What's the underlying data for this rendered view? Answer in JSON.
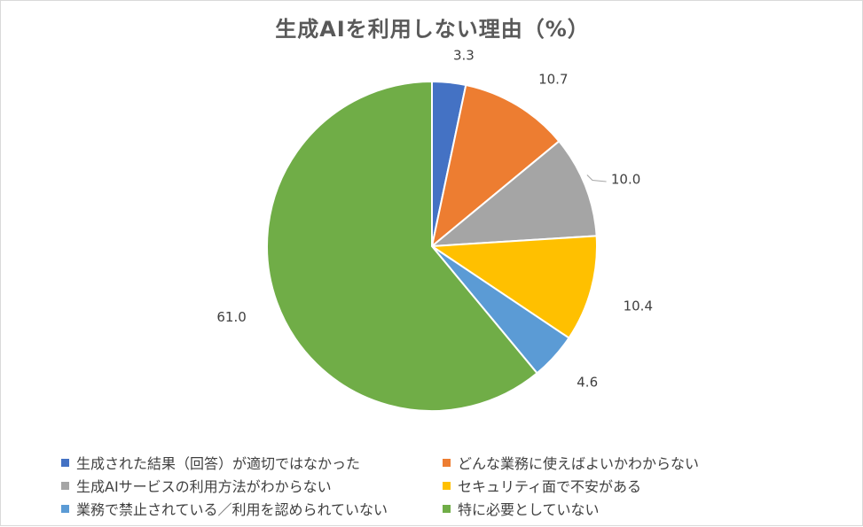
{
  "chart_data": {
    "type": "pie",
    "title": "生成AIを利用しない理由（%）",
    "categories": [
      "生成された結果（回答）が適切ではなかった",
      "どんな業務に使えばよいかわからない",
      "生成AIサービスの利用方法がわからない",
      "セキュリティ面で不安がある",
      "業務で禁止されている／利用を認められていない",
      "特に必要としていない"
    ],
    "values": [
      3.3,
      10.7,
      10.0,
      10.4,
      4.6,
      61.0
    ],
    "value_labels": [
      "3.3",
      "10.7",
      "10.0",
      "10.4",
      "4.6",
      "61.0"
    ],
    "colors": [
      "#4472c4",
      "#ed7d31",
      "#a5a5a5",
      "#ffc000",
      "#5b9bd5",
      "#70ad47"
    ],
    "legend_placement": "bottom"
  }
}
